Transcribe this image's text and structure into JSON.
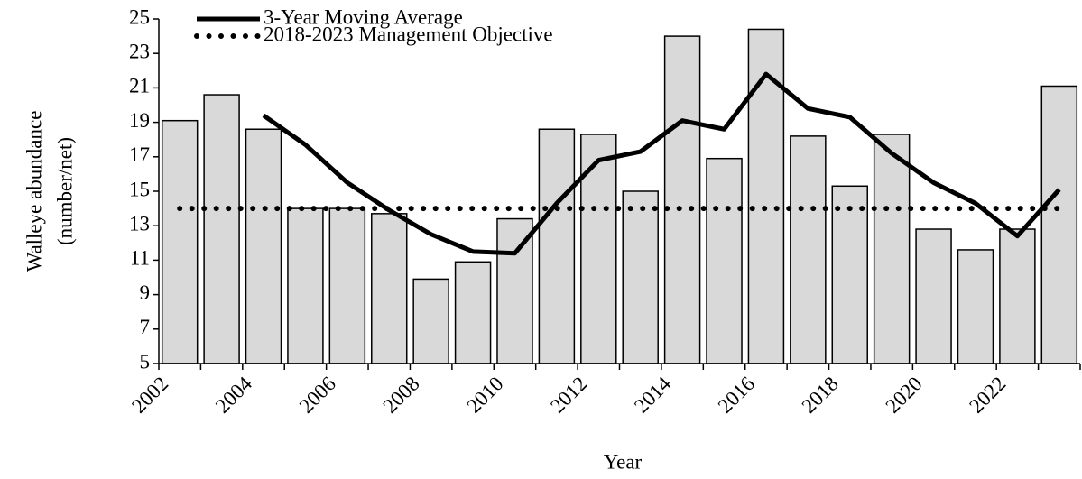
{
  "chart_data": {
    "type": "bar",
    "x_label": "Year",
    "y_label": [
      "Walleye abundance",
      "(number/net)"
    ],
    "categories": [
      "2002",
      null,
      "2004",
      null,
      "2006",
      null,
      "2008",
      null,
      "2010",
      null,
      "2012",
      null,
      "2014",
      null,
      "2016",
      null,
      "2018",
      null,
      "2020",
      null,
      "2022",
      null
    ],
    "values": [
      19.1,
      20.6,
      18.6,
      14.0,
      14.0,
      13.7,
      9.9,
      10.9,
      13.4,
      18.6,
      18.3,
      15.0,
      24.0,
      16.9,
      24.4,
      18.2,
      15.3,
      18.3,
      12.8,
      11.6,
      12.8,
      21.1
    ],
    "color": "#d9d9d9",
    "series": [
      {
        "name": "3-Year Moving Average",
        "type": "line",
        "style": "solid",
        "color": "#000000",
        "values": [
          null,
          null,
          19.4,
          17.7,
          15.5,
          13.9,
          12.5,
          11.5,
          11.4,
          14.3,
          16.8,
          17.3,
          19.1,
          18.6,
          21.8,
          19.8,
          19.3,
          17.2,
          15.5,
          14.3,
          12.4,
          15.1
        ]
      },
      {
        "name": "2018-2023 Management Objective",
        "type": "line",
        "style": "dotted",
        "color": "#000000",
        "values": [
          14,
          14,
          14,
          14,
          14,
          14,
          14,
          14,
          14,
          14,
          14,
          14,
          14,
          14,
          14,
          14,
          14,
          14,
          14,
          14,
          14,
          14
        ]
      }
    ],
    "ylim": [
      5,
      25
    ],
    "yticks": [
      5,
      7,
      9,
      11,
      13,
      15,
      17,
      19,
      21,
      23,
      25
    ],
    "grid": false
  }
}
